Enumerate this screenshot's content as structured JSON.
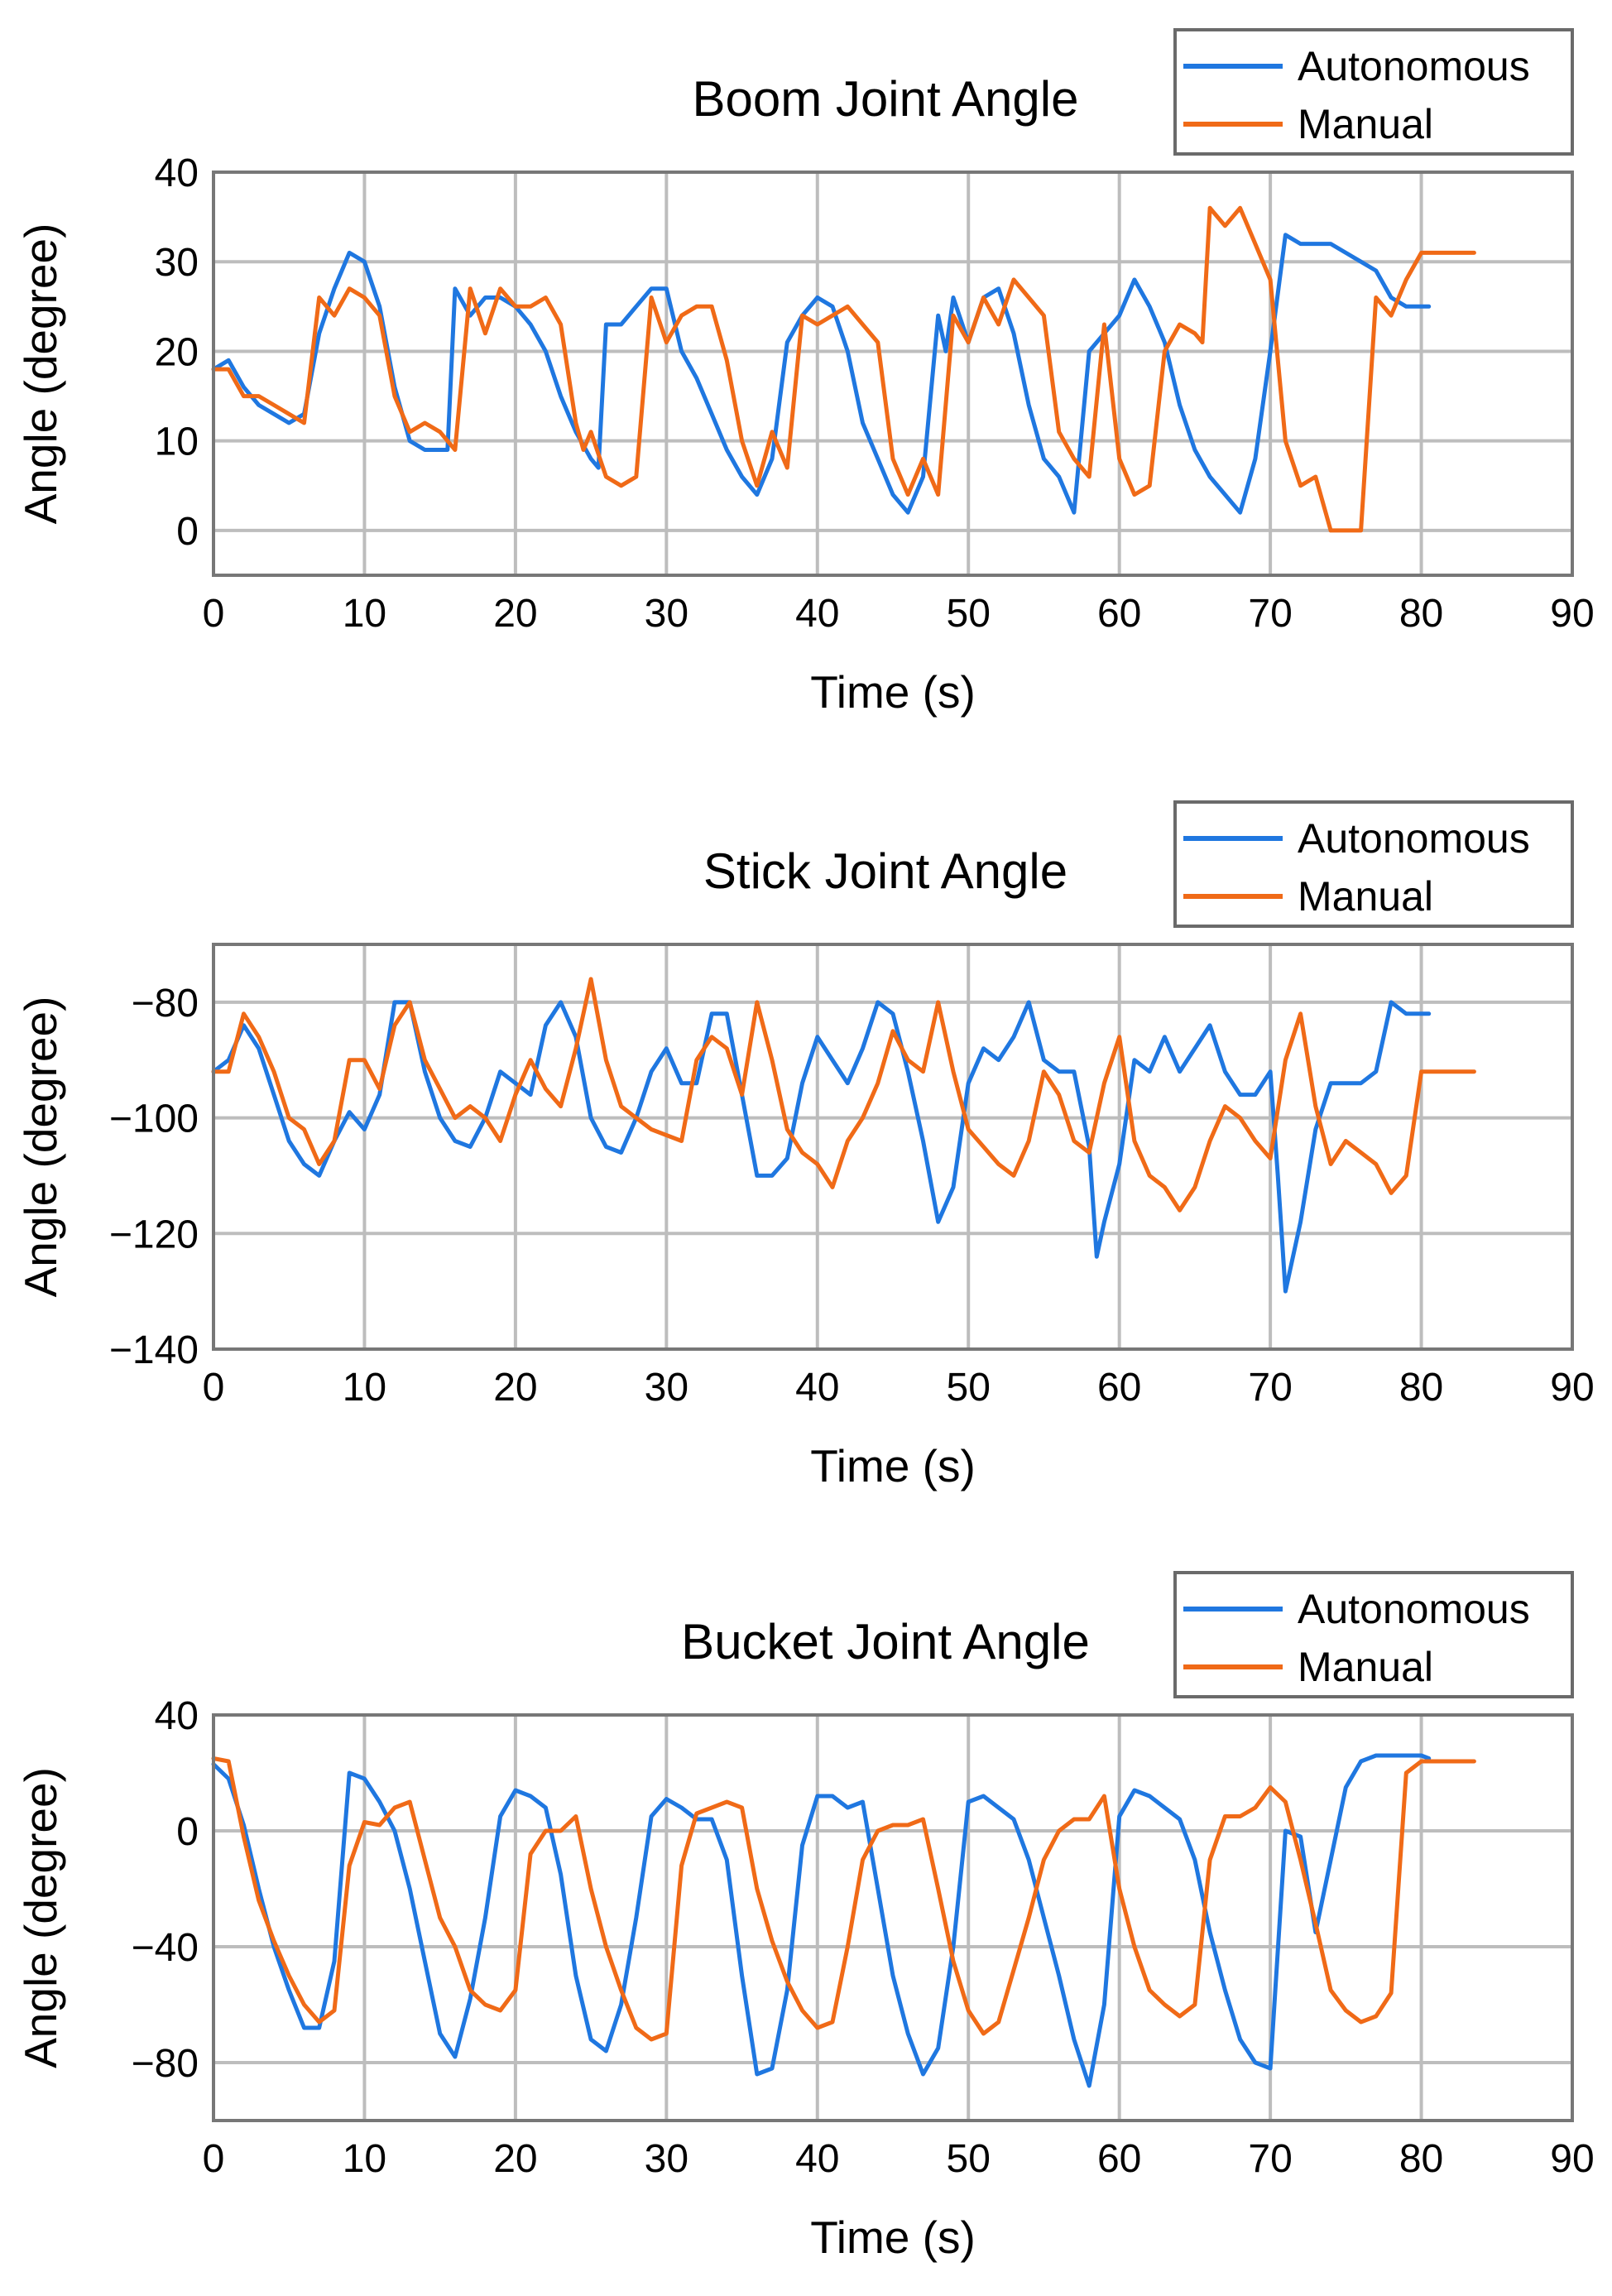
{
  "colors": {
    "autonomous": "#1f77e0",
    "manual": "#f06a17",
    "grid": "#bdbdbd",
    "frame": "#777777"
  },
  "chart_data": [
    {
      "type": "line",
      "title": "Boom Joint Angle",
      "xlabel": "Time (s)",
      "ylabel": "Angle (degree)",
      "xlim": [
        0,
        90
      ],
      "ylim": [
        -5,
        40
      ],
      "xticks": [
        0,
        10,
        20,
        30,
        40,
        50,
        60,
        70,
        80,
        90
      ],
      "yticks": [
        0,
        10,
        20,
        30,
        40
      ],
      "grid": true,
      "legend": "top-right",
      "series": [
        {
          "name": "Autonomous",
          "x": [
            0,
            1,
            2,
            3,
            4,
            5,
            6,
            7,
            8,
            9,
            10,
            11,
            12,
            13,
            14,
            15,
            15.5,
            16,
            17,
            18,
            19,
            20,
            21,
            22,
            23,
            24,
            25,
            25.5,
            26,
            27,
            28,
            29,
            30,
            31,
            32,
            33,
            34,
            35,
            36,
            37,
            38,
            39,
            40,
            41,
            42,
            43,
            44,
            45,
            46,
            47,
            48,
            48.5,
            49,
            50,
            51,
            52,
            53,
            54,
            55,
            56,
            57,
            58,
            59,
            60,
            61,
            62,
            63,
            64,
            65,
            66,
            67,
            68,
            69,
            70,
            71,
            72,
            73,
            74,
            75,
            76,
            77,
            78,
            79,
            80,
            80.5
          ],
          "y": [
            18,
            19,
            16,
            14,
            13,
            12,
            13,
            22,
            27,
            31,
            30,
            25,
            16,
            10,
            9,
            9,
            9,
            27,
            24,
            26,
            26,
            25,
            23,
            20,
            15,
            11,
            8,
            7,
            23,
            23,
            25,
            27,
            27,
            20,
            17,
            13,
            9,
            6,
            4,
            8,
            21,
            24,
            26,
            25,
            20,
            12,
            8,
            4,
            2,
            6,
            24,
            20,
            26,
            21,
            26,
            27,
            22,
            14,
            8,
            6,
            2,
            20,
            22,
            24,
            28,
            25,
            21,
            14,
            9,
            6,
            4,
            2,
            8,
            20,
            33,
            32,
            32,
            32,
            31,
            30,
            29,
            26,
            25,
            25,
            25
          ],
          "line_color": "#1f77e0"
        },
        {
          "name": "Manual",
          "x": [
            0,
            1,
            2,
            3,
            4,
            5,
            6,
            7,
            8,
            9,
            10,
            11,
            12,
            13,
            14,
            15,
            16,
            17,
            18,
            19,
            20,
            21,
            22,
            23,
            24,
            24.5,
            25,
            26,
            27,
            28,
            29,
            30,
            31,
            32,
            33,
            34,
            35,
            36,
            37,
            38,
            39,
            40,
            41,
            42,
            43,
            44,
            45,
            46,
            47,
            48,
            49,
            50,
            51,
            52,
            53,
            54,
            55,
            56,
            57,
            58,
            59,
            60,
            61,
            62,
            63,
            64,
            65,
            65.5,
            66,
            67,
            68,
            69,
            70,
            71,
            72,
            73,
            74,
            75,
            76,
            77,
            78,
            79,
            80,
            81,
            82,
            83,
            83.5
          ],
          "y": [
            18,
            18,
            15,
            15,
            14,
            13,
            12,
            26,
            24,
            27,
            26,
            24,
            15,
            11,
            12,
            11,
            9,
            27,
            22,
            27,
            25,
            25,
            26,
            23,
            12,
            9,
            11,
            6,
            5,
            6,
            26,
            21,
            24,
            25,
            25,
            19,
            10,
            5,
            11,
            7,
            24,
            23,
            24,
            25,
            23,
            21,
            8,
            4,
            8,
            4,
            24,
            21,
            26,
            23,
            28,
            26,
            24,
            11,
            8,
            6,
            23,
            8,
            4,
            5,
            20,
            23,
            22,
            21,
            36,
            34,
            36,
            32,
            28,
            10,
            5,
            6,
            0,
            0,
            0,
            26,
            24,
            28,
            31,
            31,
            31,
            31,
            31
          ],
          "line_color": "#f06a17"
        }
      ]
    },
    {
      "type": "line",
      "title": "Stick Joint Angle",
      "xlabel": "Time (s)",
      "ylabel": "Angle (degree)",
      "xlim": [
        0,
        90
      ],
      "ylim": [
        -140,
        -70
      ],
      "xticks": [
        0,
        10,
        20,
        30,
        40,
        50,
        60,
        70,
        80,
        90
      ],
      "yticks": [
        -140,
        -120,
        -100,
        -80
      ],
      "grid": true,
      "legend": "top-right",
      "series": [
        {
          "name": "Autonomous",
          "x": [
            0,
            1,
            2,
            3,
            4,
            5,
            6,
            7,
            8,
            9,
            10,
            11,
            12,
            13,
            14,
            15,
            16,
            17,
            18,
            19,
            20,
            21,
            22,
            23,
            24,
            25,
            26,
            27,
            28,
            29,
            30,
            31,
            32,
            33,
            34,
            35,
            36,
            37,
            38,
            39,
            40,
            41,
            42,
            43,
            44,
            45,
            46,
            47,
            48,
            49,
            50,
            51,
            52,
            53,
            54,
            55,
            56,
            57,
            58,
            58.5,
            59,
            60,
            61,
            62,
            63,
            64,
            65,
            66,
            67,
            68,
            69,
            70,
            70.5,
            71,
            72,
            73,
            74,
            75,
            76,
            77,
            78,
            79,
            80,
            80.5
          ],
          "y": [
            -92,
            -90,
            -84,
            -88,
            -96,
            -104,
            -108,
            -110,
            -104,
            -99,
            -102,
            -96,
            -80,
            -80,
            -92,
            -100,
            -104,
            -105,
            -100,
            -92,
            -94,
            -96,
            -84,
            -80,
            -86,
            -100,
            -105,
            -106,
            -100,
            -92,
            -88,
            -94,
            -94,
            -82,
            -82,
            -96,
            -110,
            -110,
            -107,
            -94,
            -86,
            -90,
            -94,
            -88,
            -80,
            -82,
            -92,
            -104,
            -118,
            -112,
            -94,
            -88,
            -90,
            -86,
            -80,
            -90,
            -92,
            -92,
            -105,
            -124,
            -118,
            -108,
            -90,
            -92,
            -86,
            -92,
            -88,
            -84,
            -92,
            -96,
            -96,
            -92,
            -110,
            -130,
            -118,
            -102,
            -94,
            -94,
            -94,
            -92,
            -80,
            -82,
            -82,
            -82
          ],
          "line_color": "#1f77e0"
        },
        {
          "name": "Manual",
          "x": [
            0,
            1,
            2,
            3,
            4,
            5,
            6,
            7,
            8,
            9,
            10,
            11,
            12,
            13,
            14,
            15,
            16,
            17,
            18,
            19,
            20,
            21,
            22,
            23,
            24,
            25,
            26,
            27,
            28,
            29,
            30,
            31,
            32,
            33,
            34,
            35,
            36,
            37,
            38,
            39,
            40,
            41,
            42,
            43,
            44,
            45,
            46,
            47,
            48,
            49,
            50,
            51,
            52,
            53,
            54,
            55,
            56,
            57,
            58,
            59,
            60,
            61,
            62,
            63,
            64,
            65,
            66,
            67,
            68,
            69,
            70,
            71,
            72,
            73,
            74,
            75,
            76,
            77,
            78,
            79,
            80,
            81,
            82,
            83,
            83.5
          ],
          "y": [
            -92,
            -92,
            -82,
            -86,
            -92,
            -100,
            -102,
            -108,
            -104,
            -90,
            -90,
            -95,
            -84,
            -80,
            -90,
            -95,
            -100,
            -98,
            -100,
            -104,
            -96,
            -90,
            -95,
            -98,
            -88,
            -76,
            -90,
            -98,
            -100,
            -102,
            -103,
            -104,
            -90,
            -86,
            -88,
            -96,
            -80,
            -90,
            -102,
            -106,
            -108,
            -112,
            -104,
            -100,
            -94,
            -85,
            -90,
            -92,
            -80,
            -92,
            -102,
            -105,
            -108,
            -110,
            -104,
            -92,
            -96,
            -104,
            -106,
            -94,
            -86,
            -104,
            -110,
            -112,
            -116,
            -112,
            -104,
            -98,
            -100,
            -104,
            -107,
            -90,
            -82,
            -98,
            -108,
            -104,
            -106,
            -108,
            -113,
            -110,
            -92,
            -92,
            -92,
            -92,
            -92
          ],
          "line_color": "#f06a17"
        }
      ]
    },
    {
      "type": "line",
      "title": "Bucket Joint Angle",
      "xlabel": "Time (s)",
      "ylabel": "Angle (degree)",
      "xlim": [
        0,
        90
      ],
      "ylim": [
        -100,
        40
      ],
      "xticks": [
        0,
        10,
        20,
        30,
        40,
        50,
        60,
        70,
        80,
        90
      ],
      "yticks": [
        -80,
        -40,
        0,
        40
      ],
      "grid": true,
      "legend": "top-right",
      "series": [
        {
          "name": "Autonomous",
          "x": [
            0,
            1,
            2,
            3,
            4,
            5,
            6,
            7,
            8,
            9,
            10,
            11,
            12,
            13,
            14,
            15,
            16,
            17,
            18,
            19,
            20,
            21,
            22,
            23,
            24,
            25,
            26,
            27,
            28,
            29,
            30,
            31,
            32,
            33,
            34,
            35,
            36,
            37,
            38,
            39,
            40,
            41,
            42,
            43,
            44,
            45,
            46,
            47,
            48,
            49,
            50,
            51,
            52,
            53,
            54,
            55,
            56,
            57,
            58,
            59,
            60,
            61,
            62,
            63,
            64,
            65,
            66,
            67,
            68,
            69,
            70,
            71,
            72,
            73,
            74,
            75,
            76,
            77,
            78,
            79,
            80,
            80.5
          ],
          "y": [
            23,
            18,
            2,
            -20,
            -40,
            -55,
            -68,
            -68,
            -45,
            20,
            18,
            10,
            0,
            -20,
            -45,
            -70,
            -78,
            -58,
            -30,
            5,
            14,
            12,
            8,
            -15,
            -50,
            -72,
            -76,
            -60,
            -30,
            5,
            11,
            8,
            4,
            4,
            -10,
            -50,
            -84,
            -82,
            -55,
            -5,
            12,
            12,
            8,
            10,
            -20,
            -50,
            -70,
            -84,
            -75,
            -40,
            10,
            12,
            8,
            4,
            -10,
            -30,
            -50,
            -72,
            -88,
            -60,
            5,
            14,
            12,
            8,
            4,
            -10,
            -35,
            -55,
            -72,
            -80,
            -82,
            0,
            -2,
            -35,
            -10,
            15,
            24,
            26,
            26,
            26,
            26,
            25
          ],
          "line_color": "#1f77e0"
        },
        {
          "name": "Manual",
          "x": [
            0,
            1,
            2,
            3,
            4,
            5,
            6,
            7,
            8,
            9,
            10,
            11,
            12,
            13,
            14,
            15,
            16,
            17,
            18,
            19,
            20,
            21,
            22,
            23,
            24,
            25,
            26,
            27,
            28,
            29,
            30,
            31,
            32,
            33,
            34,
            35,
            36,
            37,
            38,
            39,
            40,
            41,
            42,
            43,
            44,
            45,
            46,
            47,
            48,
            49,
            50,
            51,
            52,
            53,
            54,
            55,
            56,
            57,
            58,
            59,
            60,
            61,
            62,
            63,
            64,
            65,
            66,
            67,
            68,
            69,
            70,
            71,
            72,
            73,
            74,
            75,
            76,
            77,
            78,
            79,
            80,
            81,
            82,
            83,
            83.5
          ],
          "y": [
            25,
            24,
            -2,
            -24,
            -38,
            -50,
            -60,
            -66,
            -62,
            -12,
            3,
            2,
            8,
            10,
            -10,
            -30,
            -40,
            -55,
            -60,
            -62,
            -55,
            -8,
            0,
            0,
            5,
            -20,
            -40,
            -55,
            -68,
            -72,
            -70,
            -12,
            6,
            8,
            10,
            8,
            -20,
            -38,
            -52,
            -62,
            -68,
            -66,
            -40,
            -10,
            0,
            2,
            2,
            4,
            -20,
            -45,
            -62,
            -70,
            -66,
            -48,
            -30,
            -10,
            0,
            4,
            4,
            12,
            -20,
            -40,
            -55,
            -60,
            -64,
            -60,
            -10,
            5,
            5,
            8,
            15,
            10,
            -10,
            -32,
            -55,
            -62,
            -66,
            -64,
            -56,
            20,
            24,
            24,
            24,
            24,
            24
          ],
          "line_color": "#f06a17"
        }
      ]
    }
  ]
}
